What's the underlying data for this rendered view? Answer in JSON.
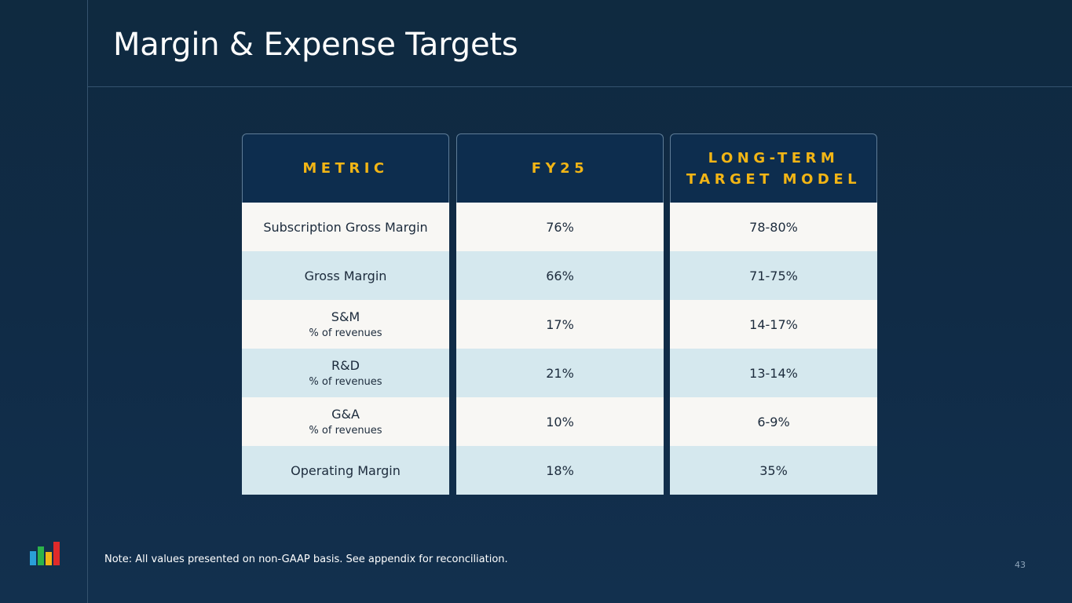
{
  "slide": {
    "title": "Margin & Expense Targets",
    "note": "Note: All values presented on non-GAAP basis. See appendix for reconciliation.",
    "page_number": "43"
  },
  "colors": {
    "background": "#102b46",
    "header_bg": "#0d2d4e",
    "header_text": "#f2b515",
    "row_light": "#f8f7f4",
    "row_tint": "#d5e8ee"
  },
  "logo": {
    "icon": "bar-chart-logo-icon",
    "bar_colors": [
      "#2a9fd8",
      "#2cb34a",
      "#f2b515",
      "#e02a2a"
    ]
  },
  "table": {
    "headers": {
      "metric": "METRIC",
      "fy25": "FY25",
      "long_term": "LONG-TERM\nTARGET MODEL"
    },
    "rows": [
      {
        "metric": "Subscription Gross Margin",
        "sub": "",
        "fy25": "76%",
        "long_term": "78-80%"
      },
      {
        "metric": "Gross Margin",
        "sub": "",
        "fy25": "66%",
        "long_term": "71-75%"
      },
      {
        "metric": "S&M",
        "sub": "% of revenues",
        "fy25": "17%",
        "long_term": "14-17%"
      },
      {
        "metric": "R&D",
        "sub": "% of revenues",
        "fy25": "21%",
        "long_term": "13-14%"
      },
      {
        "metric": "G&A",
        "sub": "% of revenues",
        "fy25": "10%",
        "long_term": "6-9%"
      },
      {
        "metric": "Operating Margin",
        "sub": "",
        "fy25": "18%",
        "long_term": "35%"
      }
    ]
  }
}
